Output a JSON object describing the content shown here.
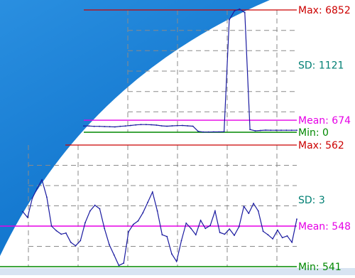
{
  "chart_data": [
    {
      "type": "line",
      "stats": {
        "max": {
          "label": "Max:",
          "value": 6852,
          "text": "6852",
          "color": "#cc0000"
        },
        "sd": {
          "label": "SD:",
          "value": 1121,
          "text": "1121",
          "color": "#007f73"
        },
        "mean": {
          "label": "Mean:",
          "value": 674,
          "text": "674",
          "color": "#e600e6"
        },
        "min": {
          "label": "Min:",
          "value": 0,
          "text": "0",
          "color": "#008800"
        }
      },
      "ylim": [
        0,
        6852
      ],
      "series": [
        {
          "color": "#1a1aa0",
          "values": [
            350,
            350,
            330,
            330,
            320,
            310,
            300,
            330,
            350,
            380,
            410,
            430,
            430,
            420,
            400,
            360,
            340,
            360,
            370,
            380,
            360,
            340,
            50,
            10,
            10,
            20,
            20,
            30,
            6300,
            6800,
            6900,
            6700,
            150,
            80,
            100,
            120,
            110,
            110,
            110,
            110,
            110,
            110
          ]
        }
      ]
    },
    {
      "type": "line",
      "stats": {
        "max": {
          "label": "Max:",
          "value": 562,
          "text": "562",
          "color": "#cc0000"
        },
        "sd": {
          "label": "SD:",
          "value": 3,
          "text": "3",
          "color": "#007f73"
        },
        "mean": {
          "label": "Mean:",
          "value": 548,
          "text": "548",
          "color": "#e600e6"
        },
        "min": {
          "label": "Min:",
          "value": 541,
          "text": "541",
          "color": "#008800"
        }
      },
      "ylim": [
        541,
        562
      ],
      "series": [
        {
          "color": "#1a1aa0",
          "values": [
            550.5,
            549.5,
            552.8,
            554.5,
            556,
            553,
            548,
            547.2,
            546.6,
            546.8,
            545.2,
            544.6,
            545.5,
            548.6,
            550.6,
            551.6,
            551,
            547.6,
            544.8,
            543,
            541.2,
            541.6,
            547,
            548.3,
            548.9,
            550.3,
            552.1,
            553.9,
            550.6,
            546.5,
            546.2,
            543.2,
            541.9,
            545.5,
            548.5,
            547.6,
            546.5,
            549,
            547.6,
            548.1,
            550.6,
            546.9,
            546.6,
            547.5,
            546.4,
            547.9,
            551.4,
            550.2,
            551.9,
            550.6,
            547.1,
            546.5,
            545.8,
            547.3,
            546,
            546.3,
            545.2,
            549.2
          ]
        }
      ]
    }
  ]
}
